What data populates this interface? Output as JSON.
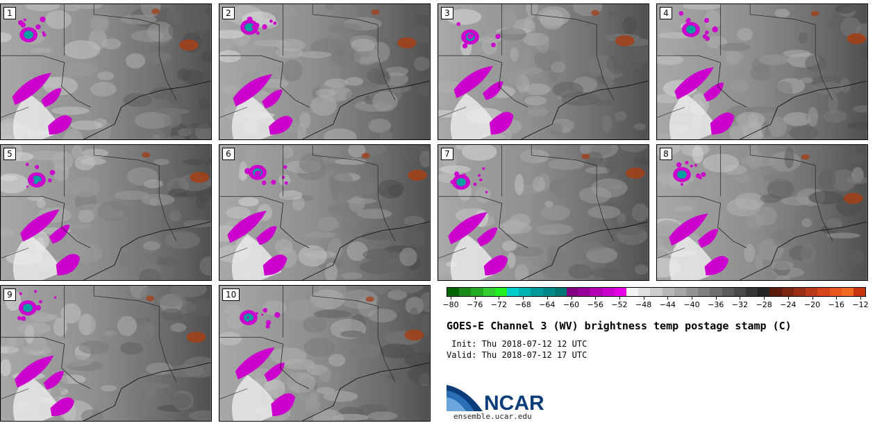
{
  "panels": [
    {
      "label": "1"
    },
    {
      "label": "2"
    },
    {
      "label": "3"
    },
    {
      "label": "4"
    },
    {
      "label": "5"
    },
    {
      "label": "6"
    },
    {
      "label": "7"
    },
    {
      "label": "8"
    },
    {
      "label": "9"
    },
    {
      "label": "10"
    }
  ],
  "colorbar": {
    "colors": [
      "#006400",
      "#1a8a1a",
      "#22aa22",
      "#33cc33",
      "#22ee22",
      "#00cccc",
      "#00b3b3",
      "#009999",
      "#008888",
      "#007777",
      "#800080",
      "#990099",
      "#b300b3",
      "#cc00cc",
      "#e600e6",
      "#f2f2f2",
      "#e0e0e0",
      "#cccccc",
      "#b8b8b8",
      "#a6a6a6",
      "#939393",
      "#808080",
      "#6e6e6e",
      "#5b5b5b",
      "#494949",
      "#363636",
      "#252525",
      "#5c1a0a",
      "#7a2510",
      "#993015",
      "#b83a18",
      "#d4451a",
      "#e8561e",
      "#f06a22",
      "#c8330f"
    ],
    "ticks": [
      "−80",
      "−76",
      "−72",
      "−68",
      "−64",
      "−60",
      "−56",
      "−52",
      "−48",
      "−44",
      "−40",
      "−36",
      "−32",
      "−28",
      "−24",
      "−20",
      "−16",
      "−12"
    ]
  },
  "title": "GOES-E Channel 3 (WV) brightness temp postage stamp (C)",
  "init": " Init: Thu 2018-07-12 12 UTC",
  "valid": "Valid: Thu 2018-07-12 17 UTC",
  "logo_text": "NCAR",
  "site": "ensemble.ucar.edu",
  "colors": {
    "magenta": "#cc00cc",
    "cyan": "#00a0a0",
    "rust": "#a0401a",
    "ncar_blue": "#2a6fb5"
  }
}
